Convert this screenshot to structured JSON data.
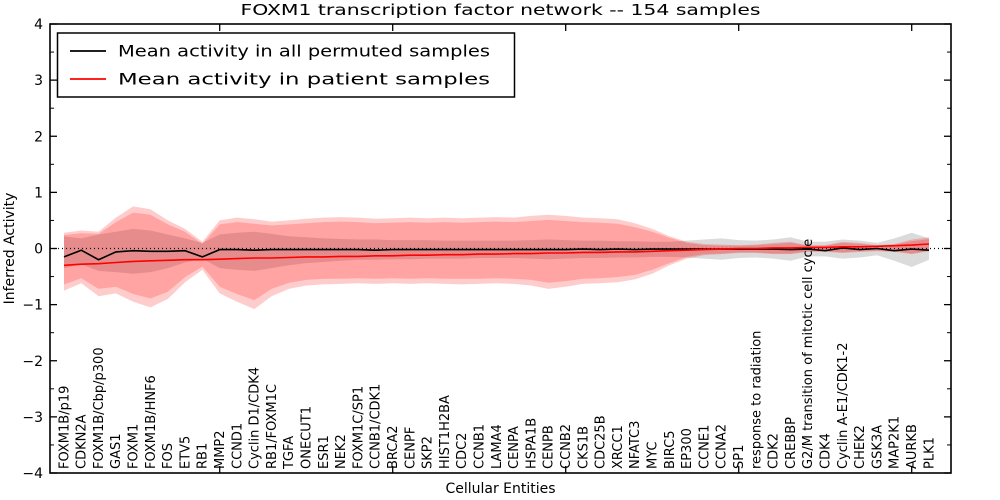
{
  "chart_data": {
    "type": "line",
    "title": "FOXM1 transcription factor network -- 154 samples",
    "xlabel": "Cellular Entities",
    "ylabel": "Inferred Activity",
    "ylim": [
      -4,
      4
    ],
    "yticks": [
      4,
      3,
      2,
      1,
      0,
      -1,
      -2,
      -3,
      -4
    ],
    "grid": false,
    "zero_line": "dotted",
    "legend": {
      "position": "upper-left",
      "entries": [
        {
          "key": "permuted-mean",
          "label": "Mean activity in all permuted samples",
          "color": "#000000"
        },
        {
          "key": "patient-mean",
          "label": "Mean activity in patient samples",
          "color": "#ff0000"
        }
      ]
    },
    "categories": [
      "FOXM1B/p19",
      "CDKN2A",
      "FOXM1B/Cbp/p300",
      "GAS1",
      "FOXM1",
      "FOXM1B/HNF6",
      "FOS",
      "ETV5",
      "RB1",
      "MMP2",
      "CCND1",
      "Cyclin D1/CDK4",
      "RB1/FOXM1C",
      "TGFA",
      "ONECUT1",
      "ESR1",
      "NEK2",
      "FOXM1C/SP1",
      "CCNB1/CDK1",
      "BRCA2",
      "CENPF",
      "SKP2",
      "HIST1H2BA",
      "CDC2",
      "CCNB1",
      "LAMA4",
      "CENPA",
      "HSPA1B",
      "CENPB",
      "CCNB2",
      "CKS1B",
      "CDC25B",
      "XRCC1",
      "NFATC3",
      "MYC",
      "BIRC5",
      "EP300",
      "CCNE1",
      "CCNA2",
      "SP1",
      "response to radiation",
      "CDK2",
      "CREBBP",
      "G2/M transition of mitotic cell cycle",
      "CDK4",
      "Cyclin A-E1/CDK1-2",
      "CHEK2",
      "GSK3A",
      "MAP2K1",
      "AURKB",
      "PLK1"
    ],
    "series": [
      {
        "key": "permuted-mean",
        "name": "Mean activity in all permuted samples",
        "color": "#000000",
        "values": [
          -0.15,
          -0.03,
          -0.2,
          -0.06,
          -0.04,
          -0.05,
          -0.05,
          -0.04,
          -0.15,
          -0.02,
          -0.02,
          -0.03,
          -0.02,
          -0.02,
          -0.02,
          -0.02,
          -0.02,
          -0.02,
          -0.03,
          -0.02,
          -0.02,
          -0.02,
          -0.02,
          -0.02,
          -0.02,
          -0.02,
          -0.02,
          -0.02,
          -0.02,
          -0.02,
          -0.01,
          -0.02,
          -0.01,
          -0.02,
          -0.01,
          -0.01,
          -0.01,
          -0.01,
          -0.01,
          -0.01,
          -0.01,
          -0.01,
          -0.02,
          -0.01,
          -0.04,
          0.01,
          -0.02,
          0.0,
          -0.04,
          -0.01,
          -0.03
        ]
      },
      {
        "key": "patient-mean",
        "name": "Mean activity in patient samples",
        "color": "#ff0000",
        "values": [
          -0.3,
          -0.28,
          -0.27,
          -0.25,
          -0.23,
          -0.22,
          -0.21,
          -0.2,
          -0.2,
          -0.19,
          -0.18,
          -0.17,
          -0.17,
          -0.16,
          -0.15,
          -0.15,
          -0.14,
          -0.14,
          -0.13,
          -0.13,
          -0.12,
          -0.12,
          -0.11,
          -0.11,
          -0.1,
          -0.1,
          -0.09,
          -0.09,
          -0.08,
          -0.08,
          -0.07,
          -0.07,
          -0.06,
          -0.06,
          -0.05,
          -0.04,
          -0.03,
          -0.02,
          -0.01,
          0.0,
          0.0,
          0.01,
          0.01,
          0.02,
          0.02,
          0.03,
          0.03,
          0.04,
          0.05,
          0.06,
          0.08
        ]
      }
    ],
    "bands": [
      {
        "key": "permuted-range",
        "color": "#999999",
        "opacity": 0.35,
        "upper": [
          0.22,
          0.18,
          0.25,
          0.3,
          0.35,
          0.32,
          0.25,
          0.18,
          0.1,
          0.25,
          0.28,
          0.3,
          0.26,
          0.22,
          0.2,
          0.18,
          0.17,
          0.16,
          0.16,
          0.15,
          0.15,
          0.15,
          0.14,
          0.14,
          0.14,
          0.14,
          0.14,
          0.15,
          0.16,
          0.15,
          0.14,
          0.14,
          0.13,
          0.13,
          0.12,
          0.12,
          0.14,
          0.16,
          0.18,
          0.15,
          0.14,
          0.16,
          0.2,
          0.12,
          0.12,
          0.16,
          0.14,
          0.1,
          0.18,
          0.28,
          0.18
        ],
        "lower": [
          -0.35,
          -0.28,
          -0.4,
          -0.42,
          -0.45,
          -0.42,
          -0.35,
          -0.25,
          -0.18,
          -0.35,
          -0.38,
          -0.4,
          -0.35,
          -0.3,
          -0.26,
          -0.24,
          -0.22,
          -0.2,
          -0.2,
          -0.19,
          -0.19,
          -0.18,
          -0.18,
          -0.18,
          -0.17,
          -0.17,
          -0.17,
          -0.18,
          -0.19,
          -0.18,
          -0.17,
          -0.17,
          -0.16,
          -0.16,
          -0.15,
          -0.15,
          -0.16,
          -0.18,
          -0.2,
          -0.17,
          -0.16,
          -0.18,
          -0.22,
          -0.14,
          -0.14,
          -0.18,
          -0.16,
          -0.12,
          -0.22,
          -0.33,
          -0.2
        ]
      },
      {
        "key": "patient-range-outer",
        "color": "#ff0000",
        "opacity": 0.2,
        "upper": [
          0.28,
          0.32,
          0.3,
          0.55,
          0.75,
          0.7,
          0.5,
          0.35,
          0.12,
          0.5,
          0.55,
          0.52,
          0.48,
          0.5,
          0.53,
          0.55,
          0.56,
          0.55,
          0.53,
          0.54,
          0.55,
          0.54,
          0.55,
          0.54,
          0.55,
          0.56,
          0.55,
          0.58,
          0.6,
          0.58,
          0.55,
          0.54,
          0.52,
          0.45,
          0.35,
          0.22,
          0.12,
          0.08,
          0.07,
          0.06,
          0.07,
          0.1,
          0.12,
          0.06,
          0.06,
          0.12,
          0.1,
          0.06,
          0.08,
          0.16,
          0.2
        ],
        "lower": [
          -0.75,
          -0.62,
          -0.85,
          -0.8,
          -0.95,
          -1.05,
          -0.9,
          -0.6,
          -0.38,
          -0.8,
          -0.95,
          -1.08,
          -0.85,
          -0.72,
          -0.66,
          -0.64,
          -0.63,
          -0.62,
          -0.63,
          -0.62,
          -0.63,
          -0.62,
          -0.63,
          -0.64,
          -0.63,
          -0.62,
          -0.63,
          -0.66,
          -0.72,
          -0.68,
          -0.63,
          -0.62,
          -0.6,
          -0.55,
          -0.45,
          -0.3,
          -0.18,
          -0.12,
          -0.1,
          -0.08,
          -0.08,
          -0.1,
          -0.1,
          -0.06,
          -0.06,
          -0.08,
          -0.06,
          -0.05,
          -0.06,
          -0.1,
          -0.05
        ]
      },
      {
        "key": "patient-range-inner",
        "color": "#ff0000",
        "opacity": 0.2,
        "upper": [
          0.24,
          0.27,
          0.26,
          0.47,
          0.64,
          0.6,
          0.43,
          0.3,
          0.08,
          0.43,
          0.47,
          0.44,
          0.41,
          0.43,
          0.45,
          0.47,
          0.48,
          0.47,
          0.45,
          0.46,
          0.47,
          0.46,
          0.47,
          0.46,
          0.47,
          0.48,
          0.47,
          0.49,
          0.51,
          0.49,
          0.47,
          0.46,
          0.44,
          0.38,
          0.3,
          0.19,
          0.1,
          0.06,
          0.05,
          0.05,
          0.06,
          0.08,
          0.1,
          0.05,
          0.05,
          0.1,
          0.08,
          0.05,
          0.06,
          0.13,
          0.17
        ],
        "lower": [
          -0.64,
          -0.53,
          -0.72,
          -0.68,
          -0.81,
          -0.89,
          -0.77,
          -0.51,
          -0.32,
          -0.68,
          -0.81,
          -0.92,
          -0.72,
          -0.61,
          -0.56,
          -0.54,
          -0.54,
          -0.53,
          -0.54,
          -0.53,
          -0.54,
          -0.53,
          -0.54,
          -0.54,
          -0.54,
          -0.53,
          -0.54,
          -0.56,
          -0.61,
          -0.58,
          -0.54,
          -0.53,
          -0.51,
          -0.47,
          -0.38,
          -0.26,
          -0.15,
          -0.1,
          -0.09,
          -0.07,
          -0.07,
          -0.09,
          -0.09,
          -0.05,
          -0.05,
          -0.07,
          -0.05,
          -0.04,
          -0.05,
          -0.09,
          -0.04
        ]
      }
    ]
  }
}
